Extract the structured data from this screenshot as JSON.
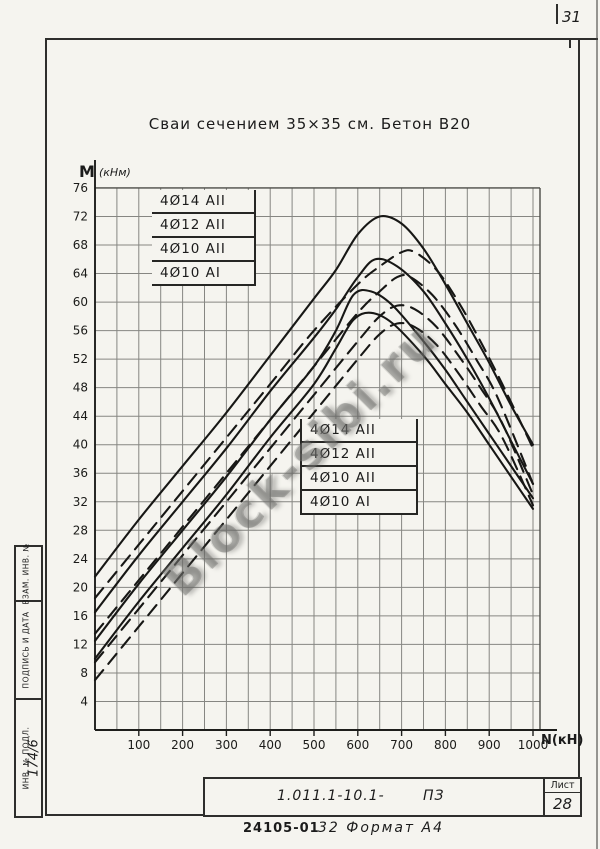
{
  "page_number": "31",
  "title": "Сваи  сечением   35×35 см.  Бетон  В20",
  "watermark": "Block-sibi.ru",
  "side_column": {
    "cells": [
      "ВЗАМ. ИНВ. №",
      "ПОДПИСЬ И ДАТА",
      "ИНВ. № ПОДЛ."
    ],
    "inventory_number": "174/6"
  },
  "title_block": {
    "doc_number": "1.011.1-10.1-",
    "doc_type": "ПЗ",
    "sheet_label": "Лист",
    "sheet_number": "28"
  },
  "footer": {
    "stamp": "24105-01",
    "format_note": "32 Формат А4"
  },
  "chart_data": {
    "type": "line",
    "title": "Сваи сечением 35×35 см. Бетон В20",
    "xlabel": "N(кН)",
    "ylabel_main": "M",
    "ylabel_unit": "(кНм)",
    "xlim": [
      0,
      1020
    ],
    "ylim": [
      0,
      76
    ],
    "grid": "on",
    "grid_step_x": 50,
    "grid_step_y": 4,
    "x_ticks": [
      100,
      200,
      300,
      400,
      500,
      600,
      700,
      800,
      900,
      1000
    ],
    "y_ticks": [
      4,
      8,
      12,
      16,
      20,
      24,
      28,
      32,
      36,
      40,
      44,
      48,
      52,
      56,
      60,
      64,
      68,
      72,
      76
    ],
    "legend_top": [
      "4Ø14 АII",
      "4Ø12 АII",
      "4Ø10 АII",
      "4Ø10 АI"
    ],
    "legend_inner": [
      "4Ø14 АII",
      "4Ø12 АII",
      "4Ø10 АII",
      "4Ø10 АI"
    ],
    "legend_position_top": "upper-left",
    "legend_position_inner": "center",
    "series": [
      {
        "name": "4Ø14 АII (сплошная)",
        "style": "solid",
        "points": [
          [
            0,
            21.5
          ],
          [
            100,
            29.5
          ],
          [
            200,
            37
          ],
          [
            300,
            44.5
          ],
          [
            400,
            52.5
          ],
          [
            500,
            60.5
          ],
          [
            550,
            64.5
          ],
          [
            600,
            69.5
          ],
          [
            650,
            72
          ],
          [
            700,
            71
          ],
          [
            750,
            67.5
          ],
          [
            800,
            62.5
          ],
          [
            850,
            57
          ],
          [
            900,
            51.5
          ],
          [
            950,
            45.5
          ],
          [
            1000,
            40
          ]
        ]
      },
      {
        "name": "4Ø12 АII (сплошная)",
        "style": "solid",
        "points": [
          [
            0,
            16.5
          ],
          [
            100,
            24.5
          ],
          [
            200,
            32
          ],
          [
            300,
            39.5
          ],
          [
            400,
            47.5
          ],
          [
            500,
            55
          ],
          [
            550,
            59
          ],
          [
            600,
            63.5
          ],
          [
            640,
            66
          ],
          [
            690,
            65
          ],
          [
            750,
            61.5
          ],
          [
            800,
            57
          ],
          [
            850,
            52
          ],
          [
            900,
            46.5
          ],
          [
            950,
            40.5
          ],
          [
            1000,
            34.5
          ]
        ]
      },
      {
        "name": "4Ø10 АII (сплошная)",
        "style": "solid",
        "points": [
          [
            0,
            12.5
          ],
          [
            100,
            20.5
          ],
          [
            200,
            28
          ],
          [
            300,
            35.5
          ],
          [
            400,
            43.5
          ],
          [
            500,
            51
          ],
          [
            550,
            56
          ],
          [
            590,
            61
          ],
          [
            630,
            61.5
          ],
          [
            680,
            59.5
          ],
          [
            750,
            54.5
          ],
          [
            800,
            50.5
          ],
          [
            850,
            46
          ],
          [
            900,
            41.5
          ],
          [
            950,
            37
          ],
          [
            1000,
            32.5
          ]
        ]
      },
      {
        "name": "4Ø10 АI (сплошная)",
        "style": "solid",
        "points": [
          [
            0,
            10
          ],
          [
            100,
            18
          ],
          [
            200,
            25.5
          ],
          [
            300,
            33
          ],
          [
            400,
            41
          ],
          [
            500,
            48.5
          ],
          [
            550,
            53.5
          ],
          [
            590,
            57.5
          ],
          [
            630,
            58.5
          ],
          [
            680,
            57
          ],
          [
            750,
            52.5
          ],
          [
            800,
            48.5
          ],
          [
            850,
            44.5
          ],
          [
            900,
            40
          ],
          [
            950,
            35.5
          ],
          [
            1000,
            31
          ]
        ]
      },
      {
        "name": "4Ø14 АII (пунктир)",
        "style": "dashed",
        "points": [
          [
            0,
            18.5
          ],
          [
            100,
            26
          ],
          [
            200,
            33.5
          ],
          [
            300,
            41
          ],
          [
            400,
            48.5
          ],
          [
            500,
            56
          ],
          [
            600,
            62.5
          ],
          [
            650,
            65
          ],
          [
            700,
            67
          ],
          [
            730,
            67
          ],
          [
            780,
            64.5
          ],
          [
            830,
            60
          ],
          [
            880,
            54.5
          ],
          [
            930,
            48.5
          ],
          [
            1000,
            39.5
          ]
        ]
      },
      {
        "name": "4Ø12 АII (пунктир)",
        "style": "dashed",
        "points": [
          [
            0,
            13.5
          ],
          [
            100,
            21
          ],
          [
            200,
            28.5
          ],
          [
            300,
            36
          ],
          [
            400,
            43.5
          ],
          [
            500,
            51
          ],
          [
            600,
            58.5
          ],
          [
            650,
            61.5
          ],
          [
            690,
            63.5
          ],
          [
            720,
            63.5
          ],
          [
            770,
            61
          ],
          [
            820,
            57
          ],
          [
            870,
            52
          ],
          [
            920,
            46.5
          ],
          [
            1000,
            34.5
          ]
        ]
      },
      {
        "name": "4Ø10 АII (пунктир)",
        "style": "dashed",
        "points": [
          [
            0,
            9.5
          ],
          [
            100,
            17
          ],
          [
            200,
            24.5
          ],
          [
            300,
            32
          ],
          [
            400,
            39.5
          ],
          [
            500,
            47
          ],
          [
            600,
            54.5
          ],
          [
            650,
            58
          ],
          [
            690,
            59.5
          ],
          [
            730,
            59
          ],
          [
            780,
            56.5
          ],
          [
            830,
            52.5
          ],
          [
            880,
            48
          ],
          [
            930,
            43
          ],
          [
            1000,
            33
          ]
        ]
      },
      {
        "name": "4Ø10 АI (пунктир)",
        "style": "dashed",
        "points": [
          [
            0,
            7
          ],
          [
            100,
            14.5
          ],
          [
            200,
            22
          ],
          [
            300,
            29.5
          ],
          [
            400,
            37
          ],
          [
            500,
            44.5
          ],
          [
            600,
            52
          ],
          [
            650,
            55.5
          ],
          [
            690,
            57
          ],
          [
            730,
            56.5
          ],
          [
            780,
            54
          ],
          [
            830,
            50
          ],
          [
            880,
            45.5
          ],
          [
            930,
            41
          ],
          [
            1000,
            31.5
          ]
        ]
      }
    ]
  }
}
